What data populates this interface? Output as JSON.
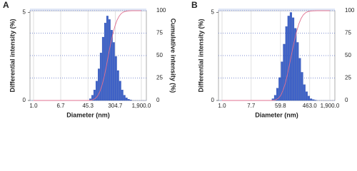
{
  "chart_data": [
    {
      "type": "histogram",
      "label": "A",
      "xlabel": "Diameter (nm)",
      "ylabel": "Differential intensity (%)",
      "y2label": "Cumulative intensity (%)",
      "log_x": true,
      "xlim": [
        0.78,
        2700
      ],
      "ylim": [
        0,
        5.1
      ],
      "y2lim": [
        0,
        100
      ],
      "xticks": [
        {
          "value": 1,
          "label": "1.0"
        },
        {
          "value": 6.7,
          "label": "6.7"
        },
        {
          "value": 45.3,
          "label": "45.3"
        },
        {
          "value": 304.7,
          "label": "304.7"
        },
        {
          "value": 1900,
          "label": "1,900.0"
        }
      ],
      "yticks": [
        0,
        5
      ],
      "y2ticks": [
        0,
        25,
        50,
        75,
        100
      ],
      "grid": true,
      "grid_color": "#7f8fd0",
      "series": [
        {
          "type": "bar",
          "color": "#3f63c8",
          "bins": [
            50,
            58,
            67,
            78,
            91,
            105,
            122,
            142,
            165,
            191,
            222,
            258,
            299,
            347,
            403,
            468,
            543,
            631,
            732,
            850,
            987
          ],
          "values": [
            0.1,
            0.3,
            0.6,
            1.1,
            1.8,
            2.7,
            3.6,
            4.4,
            4.8,
            4.6,
            4.0,
            3.3,
            2.5,
            1.7,
            1.1,
            0.6,
            0.3,
            0.15,
            0.07,
            0.03
          ]
        },
        {
          "type": "line",
          "axis": "y2",
          "color": "#e07090",
          "x": [
            1,
            50,
            58,
            67,
            78,
            91,
            105,
            122,
            142,
            165,
            191,
            222,
            258,
            299,
            347,
            403,
            468,
            543,
            631,
            732,
            850,
            987,
            1900
          ],
          "values": [
            0,
            0,
            0.3,
            1.1,
            2.6,
            5.6,
            10.3,
            17.5,
            27,
            38.7,
            51.4,
            63.6,
            74.2,
            82.9,
            89.5,
            94,
            97,
            98.5,
            99.3,
            99.7,
            99.9,
            100,
            100
          ]
        }
      ]
    },
    {
      "type": "histogram",
      "label": "B",
      "xlabel": "Diameter (nm)",
      "ylabel": "Differential intensity (%)",
      "y2label": "Cumulative intensity (%)",
      "log_x": true,
      "xlim": [
        0.78,
        2700
      ],
      "ylim": [
        0,
        5.1
      ],
      "y2lim": [
        0,
        100
      ],
      "xticks": [
        {
          "value": 1,
          "label": "1.0"
        },
        {
          "value": 7.7,
          "label": "7.7"
        },
        {
          "value": 59.8,
          "label": "59.8"
        },
        {
          "value": 463,
          "label": "463.0"
        },
        {
          "value": 1900,
          "label": "1,900.0"
        }
      ],
      "yticks": [
        0,
        5
      ],
      "y2ticks": [
        0,
        25,
        50,
        75,
        100
      ],
      "grid": true,
      "grid_color": "#7f8fd0",
      "series": [
        {
          "type": "bar",
          "color": "#3f63c8",
          "bins": [
            33,
            38.6,
            45,
            53,
            62,
            72,
            85,
            99,
            116,
            136,
            159,
            186,
            217,
            254,
            297,
            348,
            407,
            476,
            557,
            652,
            763
          ],
          "values": [
            0.1,
            0.3,
            0.7,
            1.3,
            2.2,
            3.2,
            4.2,
            4.8,
            5.0,
            4.7,
            4.1,
            3.3,
            2.4,
            1.6,
            0.9,
            0.5,
            0.25,
            0.1,
            0.05,
            0.02
          ]
        },
        {
          "type": "line",
          "axis": "y2",
          "color": "#e07090",
          "x": [
            1,
            33,
            38.6,
            45,
            53,
            62,
            72,
            85,
            99,
            116,
            136,
            159,
            186,
            217,
            254,
            297,
            348,
            407,
            476,
            557,
            652,
            763,
            1900
          ],
          "values": [
            0,
            0,
            0.3,
            1.0,
            2.8,
            6.0,
            11.6,
            19.6,
            30.2,
            42.3,
            54.9,
            66.7,
            77.0,
            85.3,
            91.4,
            95.4,
            97.7,
            98.9,
            99.6,
            99.8,
            99.9,
            100,
            100
          ]
        }
      ]
    }
  ]
}
